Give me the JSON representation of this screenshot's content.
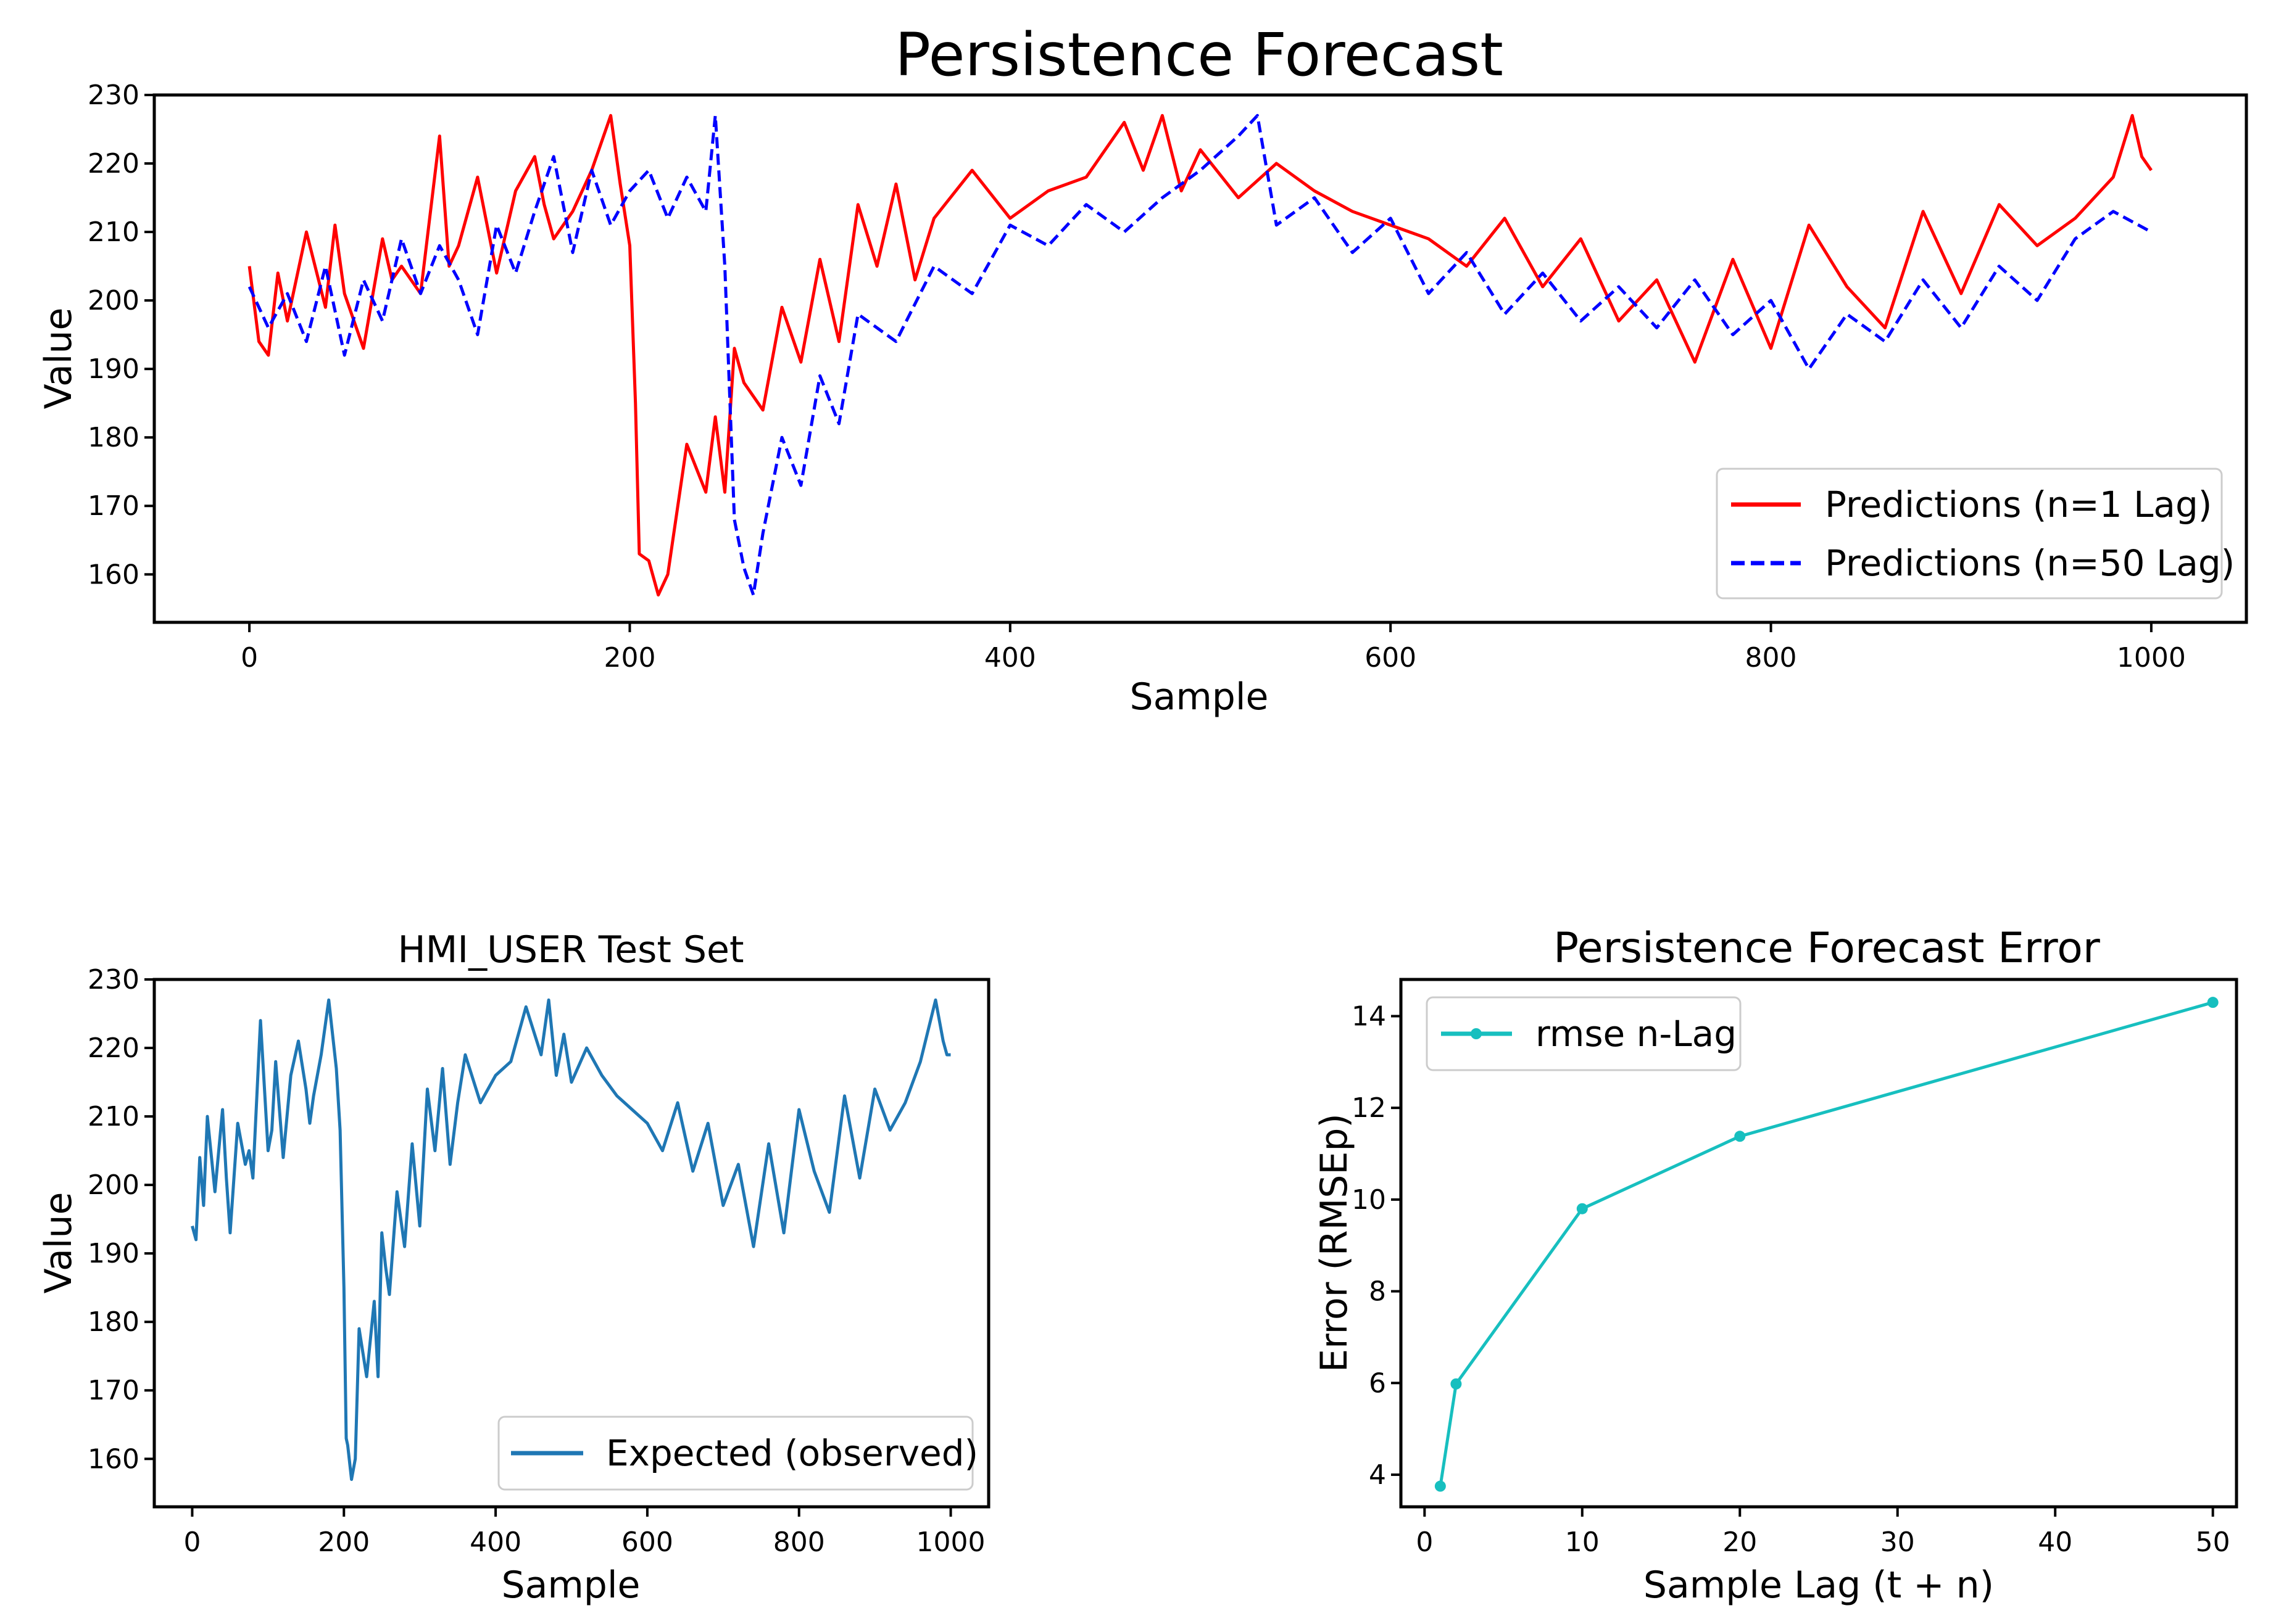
{
  "chart_data": [
    {
      "type": "line",
      "title": "Persistence Forecast",
      "xlabel": "Sample",
      "ylabel": "Value",
      "xlim": [
        -50,
        1050
      ],
      "ylim": [
        153,
        230
      ],
      "xticks": [
        0,
        200,
        400,
        600,
        800,
        1000
      ],
      "yticks": [
        160,
        170,
        180,
        190,
        200,
        210,
        220,
        230
      ],
      "legend": "bottom-right",
      "series": [
        {
          "name": "Predictions (n=1 Lag)",
          "color": "#ff0000",
          "style": "solid",
          "x": [
            0,
            5,
            10,
            15,
            20,
            30,
            40,
            45,
            50,
            60,
            70,
            75,
            80,
            90,
            100,
            105,
            110,
            120,
            130,
            140,
            150,
            155,
            160,
            170,
            180,
            190,
            195,
            200,
            203,
            205,
            210,
            215,
            220,
            230,
            240,
            245,
            250,
            255,
            260,
            270,
            280,
            290,
            300,
            310,
            320,
            330,
            340,
            350,
            360,
            380,
            400,
            420,
            440,
            460,
            470,
            480,
            490,
            500,
            520,
            540,
            560,
            580,
            600,
            620,
            640,
            660,
            680,
            700,
            720,
            740,
            760,
            780,
            800,
            820,
            840,
            860,
            880,
            900,
            920,
            940,
            960,
            980,
            990,
            995,
            1000
          ],
          "y": [
            205,
            194,
            192,
            204,
            197,
            210,
            199,
            211,
            201,
            193,
            209,
            203,
            205,
            201,
            224,
            205,
            208,
            218,
            204,
            216,
            221,
            214,
            209,
            213,
            219,
            227,
            217,
            208,
            185,
            163,
            162,
            157,
            160,
            179,
            172,
            183,
            172,
            193,
            188,
            184,
            199,
            191,
            206,
            194,
            214,
            205,
            217,
            203,
            212,
            219,
            212,
            216,
            218,
            226,
            219,
            227,
            216,
            222,
            215,
            220,
            216,
            213,
            211,
            209,
            205,
            212,
            202,
            209,
            197,
            203,
            191,
            206,
            193,
            211,
            202,
            196,
            213,
            201,
            214,
            208,
            212,
            218,
            227,
            221,
            219
          ]
        },
        {
          "name": "Predictions (n=50 Lag)",
          "color": "#0000ff",
          "style": "dashed",
          "x": [
            0,
            10,
            20,
            30,
            40,
            50,
            60,
            70,
            80,
            90,
            100,
            110,
            120,
            130,
            140,
            150,
            160,
            170,
            180,
            190,
            200,
            210,
            220,
            230,
            240,
            245,
            250,
            255,
            260,
            265,
            270,
            280,
            290,
            300,
            310,
            320,
            340,
            360,
            380,
            400,
            420,
            440,
            460,
            480,
            500,
            520,
            530,
            540,
            560,
            580,
            600,
            620,
            640,
            660,
            680,
            700,
            720,
            740,
            760,
            780,
            800,
            820,
            840,
            860,
            880,
            900,
            920,
            940,
            960,
            980,
            1000
          ],
          "y": [
            202,
            196,
            201,
            194,
            205,
            192,
            203,
            197,
            209,
            201,
            208,
            203,
            195,
            211,
            204,
            213,
            221,
            207,
            219,
            211,
            216,
            219,
            212,
            218,
            213,
            227,
            205,
            168,
            161,
            157,
            166,
            180,
            173,
            189,
            182,
            198,
            194,
            205,
            201,
            211,
            208,
            214,
            210,
            215,
            219,
            224,
            227,
            211,
            215,
            207,
            212,
            201,
            207,
            198,
            204,
            197,
            202,
            196,
            203,
            195,
            200,
            190,
            198,
            194,
            203,
            196,
            205,
            200,
            209,
            213,
            210
          ]
        }
      ]
    },
    {
      "type": "line",
      "title": "HMI_USER Test Set",
      "xlabel": "Sample",
      "ylabel": "Value",
      "xlim": [
        -50,
        1050
      ],
      "ylim": [
        153,
        230
      ],
      "xticks": [
        0,
        200,
        400,
        600,
        800,
        1000
      ],
      "yticks": [
        160,
        170,
        180,
        190,
        200,
        210,
        220,
        230
      ],
      "legend": "bottom-right",
      "series": [
        {
          "name": "Expected (observed)",
          "color": "#1f77b4",
          "style": "solid",
          "x": [
            0,
            5,
            10,
            15,
            20,
            30,
            40,
            45,
            50,
            60,
            70,
            75,
            80,
            90,
            100,
            105,
            110,
            120,
            130,
            140,
            150,
            155,
            160,
            170,
            180,
            190,
            195,
            200,
            203,
            205,
            210,
            215,
            220,
            230,
            240,
            245,
            250,
            255,
            260,
            270,
            280,
            290,
            300,
            310,
            320,
            330,
            340,
            350,
            360,
            380,
            400,
            420,
            440,
            460,
            470,
            480,
            490,
            500,
            520,
            540,
            560,
            580,
            600,
            620,
            640,
            660,
            680,
            700,
            720,
            740,
            760,
            780,
            800,
            820,
            840,
            860,
            880,
            900,
            920,
            940,
            960,
            980,
            990,
            995,
            1000
          ],
          "y": [
            194,
            192,
            204,
            197,
            210,
            199,
            211,
            201,
            193,
            209,
            203,
            205,
            201,
            224,
            205,
            208,
            218,
            204,
            216,
            221,
            214,
            209,
            213,
            219,
            227,
            217,
            208,
            185,
            163,
            162,
            157,
            160,
            179,
            172,
            183,
            172,
            193,
            188,
            184,
            199,
            191,
            206,
            194,
            214,
            205,
            217,
            203,
            212,
            219,
            212,
            216,
            218,
            226,
            219,
            227,
            216,
            222,
            215,
            220,
            216,
            213,
            211,
            209,
            205,
            212,
            202,
            209,
            197,
            203,
            191,
            206,
            193,
            211,
            202,
            196,
            213,
            201,
            214,
            208,
            212,
            218,
            227,
            221,
            219,
            219
          ]
        }
      ]
    },
    {
      "type": "line",
      "title": "Persistence Forecast Error",
      "xlabel": "Sample Lag (t + n)",
      "ylabel": "Error (RMSEp)",
      "xlim": [
        -1.5,
        51.5
      ],
      "ylim": [
        3.3,
        14.8
      ],
      "xticks": [
        0,
        10,
        20,
        30,
        40,
        50
      ],
      "yticks": [
        4,
        6,
        8,
        10,
        12,
        14
      ],
      "legend": "top-left",
      "series": [
        {
          "name": "rmse n-Lag",
          "color": "#17bfbf",
          "style": "solid-marker",
          "x": [
            1,
            2,
            10,
            20,
            50
          ],
          "y": [
            3.75,
            5.98,
            9.8,
            11.38,
            14.3
          ]
        }
      ]
    }
  ]
}
